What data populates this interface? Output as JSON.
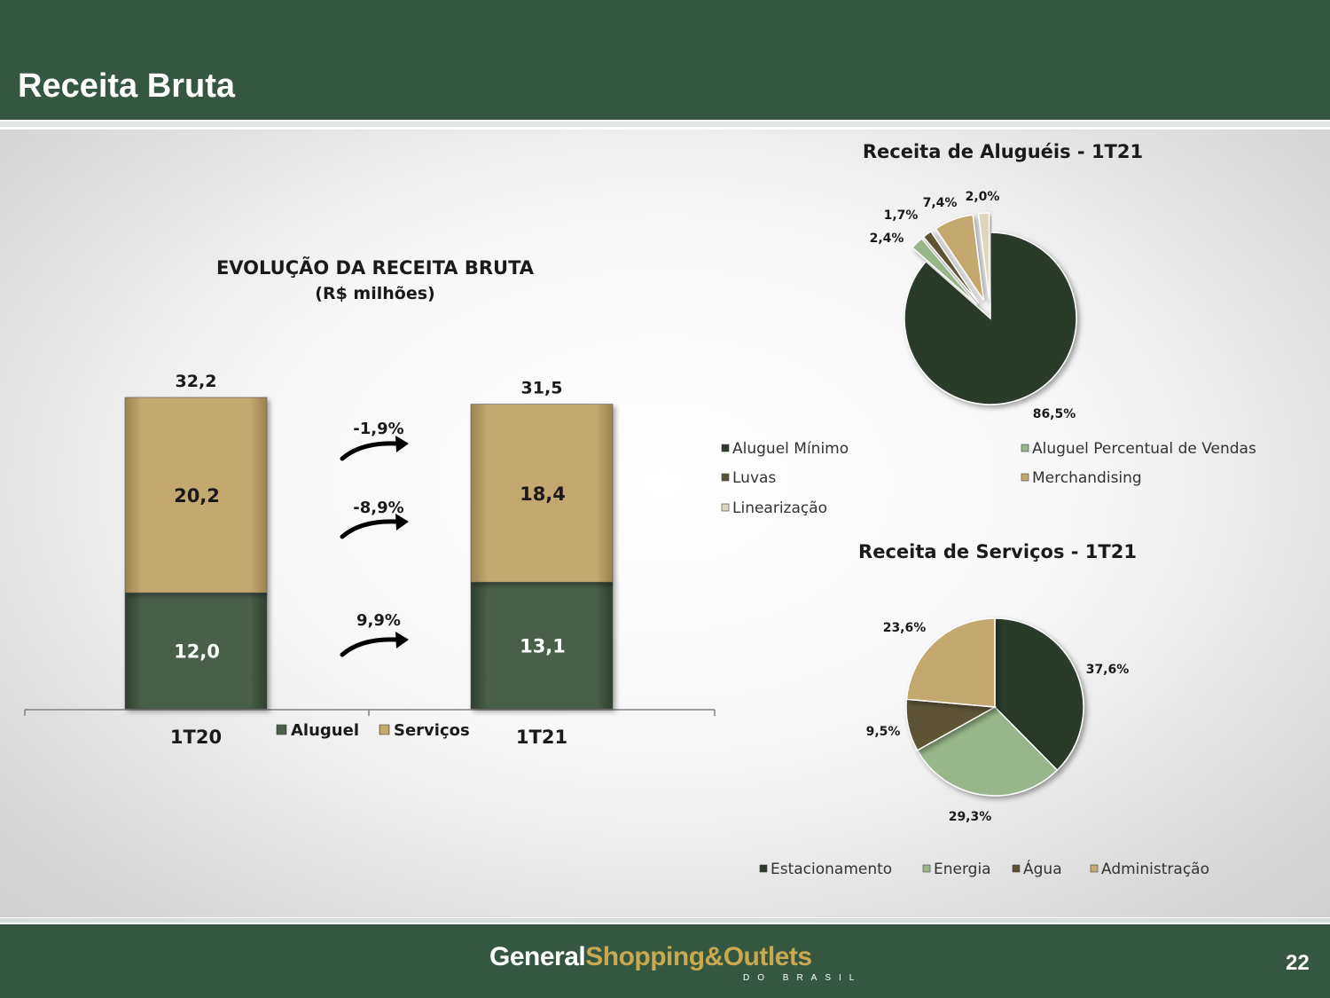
{
  "page": {
    "title": "Receita Bruta",
    "page_number": "22",
    "logo_part1": "General",
    "logo_part2": "Shopping&Outlets",
    "logo_sub": "DO BRASIL"
  },
  "colors": {
    "header": "#355641",
    "aluguel": "#4a5e48",
    "servicos": "#c3a96f",
    "dark_green": "#2c3a2c",
    "light_green": "#98b689",
    "brown": "#5d5236",
    "tan": "#c3a96f",
    "cream": "#ddd5bd"
  },
  "chart_data": [
    {
      "type": "bar",
      "stacked": true,
      "title": "EVOLUÇÃO DA RECEITA BRUTA",
      "subtitle": "(R$ milhões)",
      "categories": [
        "1T20",
        "1T21"
      ],
      "series": [
        {
          "name": "Aluguel",
          "values": [
            12.0,
            13.1
          ],
          "labels": [
            "12,0",
            "13,1"
          ]
        },
        {
          "name": "Serviços",
          "values": [
            20.2,
            18.4
          ],
          "labels": [
            "20,2",
            "18,4"
          ]
        }
      ],
      "totals": [
        32.2,
        31.5
      ],
      "total_labels": [
        "32,2",
        "31,5"
      ],
      "growth_labels": [
        "-1,9%",
        "-8,9%",
        "9,9%"
      ],
      "legend": "bottom"
    },
    {
      "type": "pie",
      "title": "Receita de Aluguéis - 1T21",
      "labels": [
        "Aluguel Mínimo",
        "Aluguel Percentual de Vendas",
        "Luvas",
        "Merchandising",
        "Linearização"
      ],
      "values": [
        86.5,
        2.4,
        1.7,
        7.4,
        2.0
      ],
      "value_labels": [
        "86,5%",
        "2,4%",
        "1,7%",
        "7,4%",
        "2,0%"
      ],
      "legend": "bottom"
    },
    {
      "type": "pie",
      "title": "Receita de Serviços - 1T21",
      "labels": [
        "Estacionamento",
        "Energia",
        "Água",
        "Administração"
      ],
      "values": [
        37.6,
        29.3,
        9.5,
        23.6
      ],
      "value_labels": [
        "37,6%",
        "29,3%",
        "9,5%",
        "23,6%"
      ],
      "legend": "bottom"
    }
  ]
}
